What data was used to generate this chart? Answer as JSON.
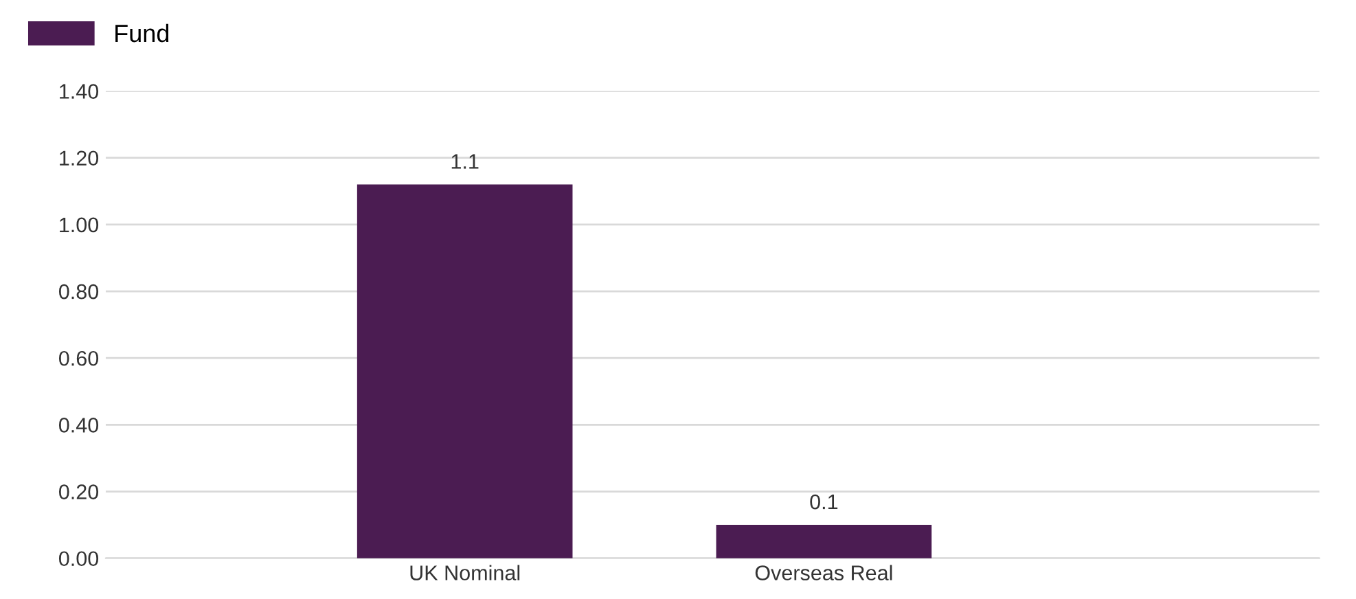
{
  "chart_data": {
    "type": "bar",
    "categories": [
      "UK Nominal",
      "Overseas Real"
    ],
    "series": [
      {
        "name": "Fund",
        "color": "#4b1c52",
        "values": [
          1.12,
          0.1
        ],
        "value_labels": [
          "1.1",
          "0.1"
        ]
      }
    ],
    "ylim": [
      0,
      1.4
    ],
    "yticks": [
      {
        "value": 0,
        "label": "0.00"
      },
      {
        "value": 0.2,
        "label": "0.20"
      },
      {
        "value": 0.4,
        "label": "0.40"
      },
      {
        "value": 0.6,
        "label": "0.60"
      },
      {
        "value": 0.8,
        "label": "0.80"
      },
      {
        "value": 1.0,
        "label": "1.00"
      },
      {
        "value": 1.2,
        "label": "1.20"
      },
      {
        "value": 1.4,
        "label": "1.40"
      }
    ],
    "grid": "y",
    "legend": "top left"
  }
}
